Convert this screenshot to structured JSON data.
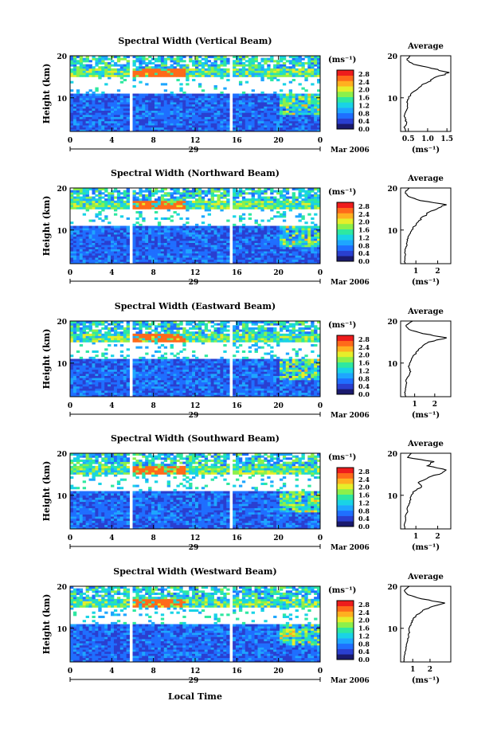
{
  "figure": {
    "local_time_label": "Local Time",
    "date_label": "Mar 2006",
    "colorbar_unit": "(ms⁻¹)",
    "avg_title": "Average",
    "avg_xlabel": "(ms⁻¹)"
  },
  "chart_data": [
    {
      "type": "heatmap",
      "title": "Spectral Width (Vertical Beam)",
      "ylabel": "Height (km)",
      "xlabel": "Local Time",
      "x_ticks": [
        "0",
        "4",
        "8",
        "12",
        "16",
        "20",
        "0"
      ],
      "xlim": [
        0,
        24
      ],
      "y_ticks": [
        "10",
        "20"
      ],
      "ylim": [
        2,
        20
      ],
      "day_label": "29",
      "colorbar": {
        "unit": "(ms⁻¹)",
        "tick_labels": [
          "0.0",
          "0.4",
          "0.8",
          "1.2",
          "1.6",
          "2.0",
          "2.4",
          "2.8"
        ],
        "range": [
          0,
          3.0
        ]
      },
      "data_gaps_hours": [
        [
          5.8,
          6.0
        ],
        [
          15.4,
          15.7
        ]
      ],
      "average_profile": {
        "title": "Average",
        "xlabel": "(ms⁻¹)",
        "x_ticks": [
          "0.5",
          "1.0",
          "1.5"
        ],
        "xlim": [
          0.3,
          1.6
        ],
        "y_ticks": [
          "10",
          "20"
        ],
        "ylim": [
          2,
          20
        ],
        "height_km": [
          2,
          3,
          4,
          5,
          6,
          7,
          8,
          9,
          10,
          11,
          12,
          13,
          14,
          15,
          16,
          17,
          18,
          19,
          20
        ],
        "value_ms": [
          0.42,
          0.4,
          0.45,
          0.42,
          0.4,
          0.44,
          0.48,
          0.46,
          0.5,
          0.58,
          0.7,
          0.85,
          1.05,
          1.25,
          1.55,
          1.1,
          0.62,
          0.45,
          0.55
        ]
      }
    },
    {
      "type": "heatmap",
      "title": "Spectral Width (Northward Beam)",
      "ylabel": "Height (km)",
      "xlabel": "Local Time",
      "x_ticks": [
        "0",
        "4",
        "8",
        "12",
        "16",
        "20",
        "0"
      ],
      "xlim": [
        0,
        24
      ],
      "y_ticks": [
        "10",
        "20"
      ],
      "ylim": [
        2,
        20
      ],
      "day_label": "29",
      "colorbar": {
        "unit": "(ms⁻¹)",
        "tick_labels": [
          "0.0",
          "0.4",
          "0.8",
          "1.2",
          "1.6",
          "2.0",
          "2.4",
          "2.8"
        ],
        "range": [
          0,
          3.0
        ]
      },
      "data_gaps_hours": [
        [
          5.8,
          6.0
        ],
        [
          15.4,
          15.7
        ]
      ],
      "average_profile": {
        "title": "Average",
        "xlabel": "(ms⁻¹)",
        "x_ticks": [
          "1",
          "2"
        ],
        "xlim": [
          0.3,
          2.6
        ],
        "y_ticks": [
          "10",
          "20"
        ],
        "ylim": [
          2,
          20
        ],
        "height_km": [
          2,
          3,
          4,
          5,
          6,
          7,
          8,
          9,
          10,
          11,
          12,
          13,
          14,
          15,
          16,
          17,
          18,
          19,
          20
        ],
        "value_ms": [
          0.5,
          0.48,
          0.52,
          0.5,
          0.55,
          0.6,
          0.62,
          0.7,
          0.8,
          0.95,
          1.1,
          1.3,
          1.55,
          1.9,
          2.4,
          1.2,
          0.65,
          0.5,
          0.7
        ]
      }
    },
    {
      "type": "heatmap",
      "title": "Spectral Width (Eastward Beam)",
      "ylabel": "Height (km)",
      "xlabel": "Local Time",
      "x_ticks": [
        "0",
        "4",
        "8",
        "12",
        "16",
        "20",
        "0"
      ],
      "xlim": [
        0,
        24
      ],
      "y_ticks": [
        "10",
        "20"
      ],
      "ylim": [
        2,
        20
      ],
      "day_label": "29",
      "colorbar": {
        "unit": "(ms⁻¹)",
        "tick_labels": [
          "0.0",
          "0.4",
          "0.8",
          "1.2",
          "1.6",
          "2.0",
          "2.4",
          "2.8"
        ],
        "range": [
          0,
          3.0
        ]
      },
      "data_gaps_hours": [
        [
          5.8,
          6.0
        ],
        [
          15.4,
          15.7
        ]
      ],
      "average_profile": {
        "title": "Average",
        "xlabel": "(ms⁻¹)",
        "x_ticks": [
          "1",
          "2"
        ],
        "xlim": [
          0.3,
          2.8
        ],
        "y_ticks": [
          "10",
          "20"
        ],
        "ylim": [
          2,
          20
        ],
        "height_km": [
          2,
          3,
          4,
          5,
          6,
          7,
          8,
          9,
          10,
          11,
          12,
          13,
          14,
          15,
          16,
          17,
          18,
          19,
          20
        ],
        "value_ms": [
          0.55,
          0.5,
          0.55,
          0.6,
          0.58,
          0.7,
          0.8,
          0.7,
          0.75,
          0.85,
          1.0,
          1.15,
          1.4,
          1.7,
          2.6,
          1.4,
          0.7,
          0.55,
          0.9
        ]
      }
    },
    {
      "type": "heatmap",
      "title": "Spectral Width (Southward Beam)",
      "ylabel": "Height (km)",
      "xlabel": "Local Time",
      "x_ticks": [
        "0",
        "4",
        "8",
        "12",
        "16",
        "20",
        "0"
      ],
      "xlim": [
        0,
        24
      ],
      "y_ticks": [
        "10",
        "20"
      ],
      "ylim": [
        2,
        20
      ],
      "day_label": "29",
      "colorbar": {
        "unit": "(ms⁻¹)",
        "tick_labels": [
          "0.0",
          "0.4",
          "0.8",
          "1.2",
          "1.6",
          "2.0",
          "2.4",
          "2.8"
        ],
        "range": [
          0,
          3.0
        ]
      },
      "data_gaps_hours": [
        [
          5.8,
          6.0
        ],
        [
          15.4,
          15.7
        ]
      ],
      "average_profile": {
        "title": "Average",
        "xlabel": "(ms⁻¹)",
        "x_ticks": [
          "1",
          "2"
        ],
        "xlim": [
          0.3,
          2.6
        ],
        "y_ticks": [
          "10",
          "20"
        ],
        "ylim": [
          2,
          20
        ],
        "height_km": [
          2,
          3,
          4,
          5,
          6,
          7,
          8,
          9,
          10,
          11,
          12,
          13,
          14,
          15,
          16,
          17,
          18,
          19,
          20
        ],
        "value_ms": [
          0.5,
          0.48,
          0.55,
          0.52,
          0.6,
          0.62,
          0.7,
          0.75,
          0.8,
          0.9,
          1.3,
          1.1,
          1.5,
          2.0,
          2.4,
          1.5,
          1.8,
          0.6,
          0.8
        ]
      }
    },
    {
      "type": "heatmap",
      "title": "Spectral Width (Westward Beam)",
      "ylabel": "Height (km)",
      "xlabel": "Local Time",
      "x_ticks": [
        "0",
        "4",
        "8",
        "12",
        "16",
        "20",
        "0"
      ],
      "xlim": [
        0,
        24
      ],
      "y_ticks": [
        "10",
        "20"
      ],
      "ylim": [
        2,
        20
      ],
      "day_label": "29",
      "colorbar": {
        "unit": "(ms⁻¹)",
        "tick_labels": [
          "0.0",
          "0.4",
          "0.8",
          "1.2",
          "1.6",
          "2.0",
          "2.4",
          "2.8"
        ],
        "range": [
          0,
          3.0
        ]
      },
      "data_gaps_hours": [
        [
          5.8,
          6.0
        ],
        [
          15.4,
          15.7
        ]
      ],
      "average_profile": {
        "title": "Average",
        "xlabel": "(ms⁻¹)",
        "x_ticks": [
          "1",
          "2"
        ],
        "xlim": [
          0.3,
          3.2
        ],
        "y_ticks": [
          "10",
          "20"
        ],
        "ylim": [
          2,
          20
        ],
        "height_km": [
          2,
          3,
          4,
          5,
          6,
          7,
          8,
          9,
          10,
          11,
          12,
          13,
          14,
          15,
          16,
          17,
          18,
          19,
          20
        ],
        "value_ms": [
          0.5,
          0.5,
          0.55,
          0.6,
          0.62,
          0.7,
          0.75,
          0.8,
          0.8,
          0.9,
          1.0,
          1.2,
          1.5,
          2.0,
          2.9,
          1.5,
          0.7,
          0.5,
          0.8
        ]
      }
    }
  ],
  "colors": {
    "colormap": [
      "#1a1a6e",
      "#2a3fd0",
      "#1f6fff",
      "#1ea6ff",
      "#19d3e6",
      "#2ee8a0",
      "#8cf04a",
      "#e6ee2a",
      "#ffb020",
      "#ff6a1a",
      "#ee1c1c"
    ]
  }
}
